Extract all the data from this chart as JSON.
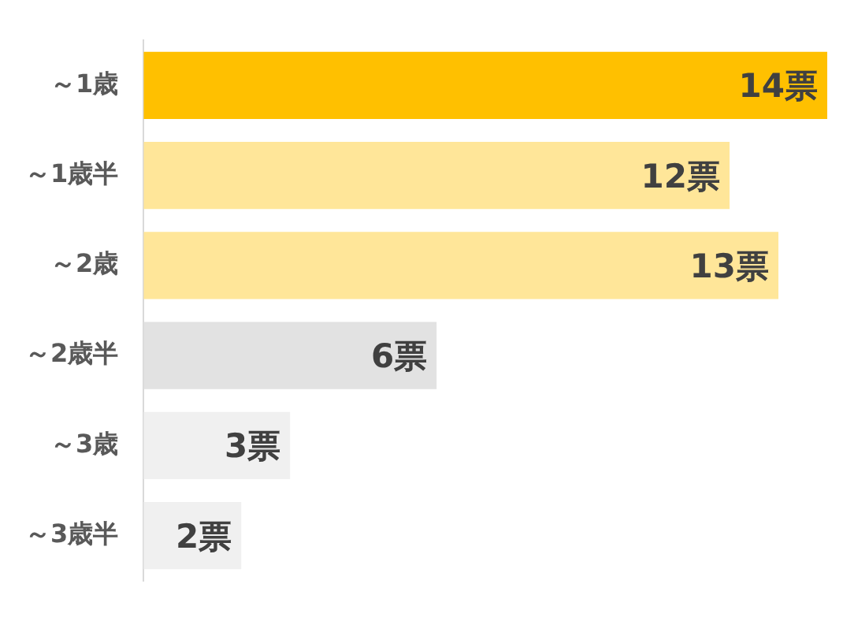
{
  "chart_data": {
    "type": "bar",
    "orientation": "horizontal",
    "categories": [
      "～1歳",
      "～1歳半",
      "～2歳",
      "～2歳半",
      "～3歳",
      "～3歳半"
    ],
    "values": [
      14,
      12,
      13,
      6,
      3,
      2
    ],
    "colors": [
      "#ffc000",
      "#ffe699",
      "#ffe699",
      "#e2e2e2",
      "#f0f0f0",
      "#f0f0f0"
    ],
    "value_labels": [
      "14票",
      "12票",
      "13票",
      "6票",
      "3票",
      "2票"
    ],
    "xlim": [
      0,
      14
    ],
    "tick_labels": "y",
    "legend": false
  }
}
